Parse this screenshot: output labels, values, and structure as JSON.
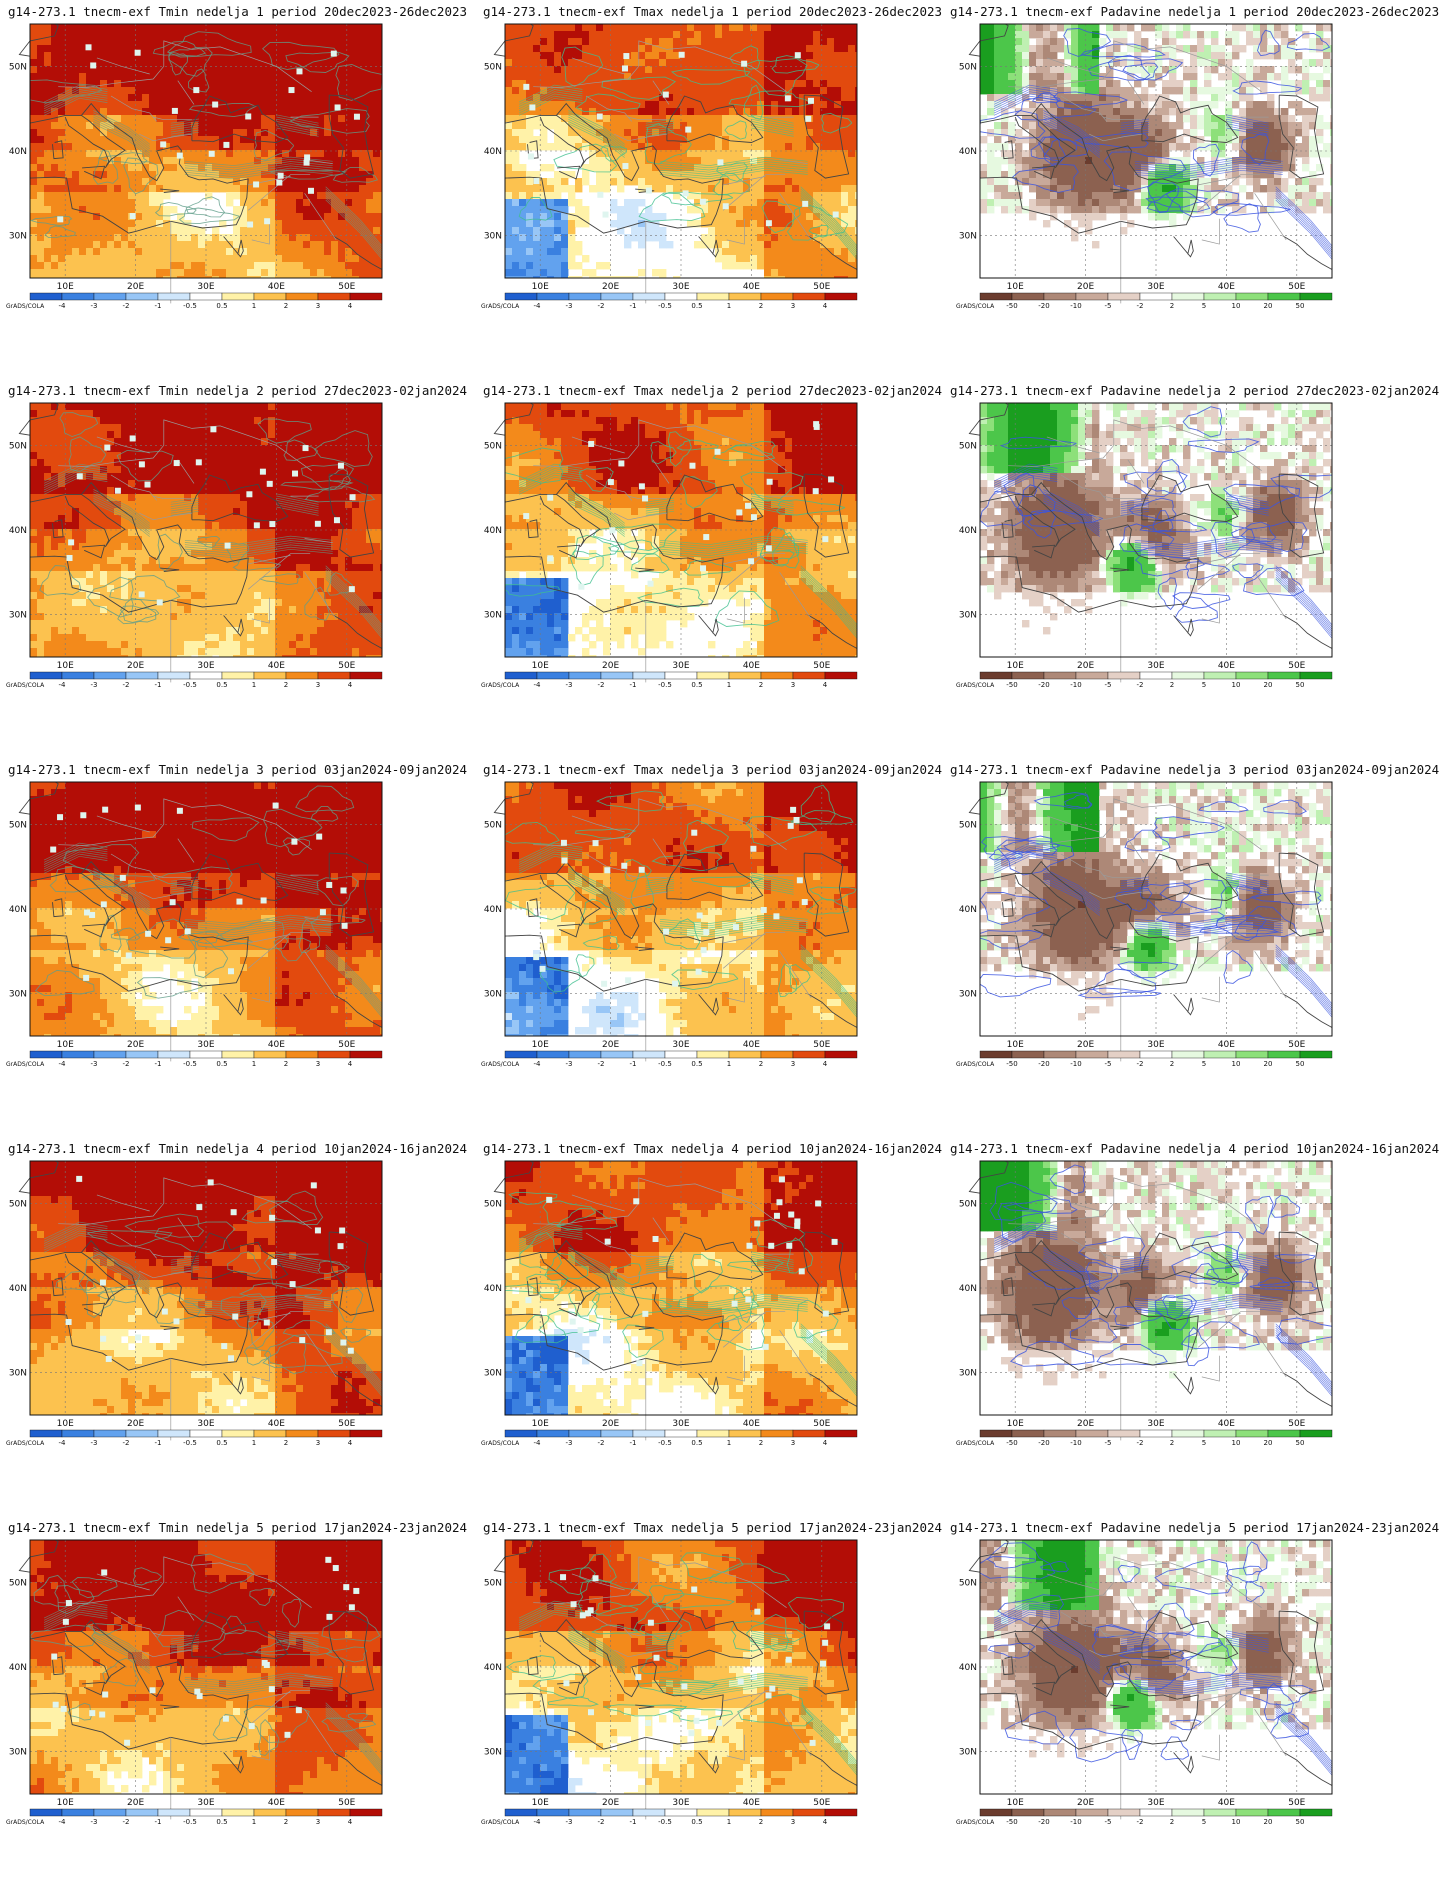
{
  "panels": [
    {
      "title": "g14-273.1 tnecm-exf Tmin nedelja 1 period 20dec2023-26dec2023",
      "var": "tmin",
      "seed": 11
    },
    {
      "title": "g14-273.1 tnecm-exf Tmax nedelja 1 period 20dec2023-26dec2023",
      "var": "tmax",
      "seed": 12
    },
    {
      "title": "g14-273.1 tnecm-exf Padavine nedelja 1 period 20dec2023-26dec2023",
      "var": "precip",
      "seed": 13
    },
    {
      "title": "g14-273.1 tnecm-exf Tmin nedelja 2 period 27dec2023-02jan2024",
      "var": "tmin",
      "seed": 21
    },
    {
      "title": "g14-273.1 tnecm-exf Tmax nedelja 2 period 27dec2023-02jan2024",
      "var": "tmax",
      "seed": 22
    },
    {
      "title": "g14-273.1 tnecm-exf Padavine nedelja 2 period 27dec2023-02jan2024",
      "var": "precip",
      "seed": 23
    },
    {
      "title": "g14-273.1 tnecm-exf Tmin nedelja 3 period 03jan2024-09jan2024",
      "var": "tmin",
      "seed": 31
    },
    {
      "title": "g14-273.1 tnecm-exf Tmax nedelja 3 period 03jan2024-09jan2024",
      "var": "tmax",
      "seed": 32
    },
    {
      "title": "g14-273.1 tnecm-exf Padavine nedelja 3 period 03jan2024-09jan2024",
      "var": "precip",
      "seed": 33
    },
    {
      "title": "g14-273.1 tnecm-exf Tmin nedelja 4 period 10jan2024-16jan2024",
      "var": "tmin",
      "seed": 41
    },
    {
      "title": "g14-273.1 tnecm-exf Tmax nedelja 4 period 10jan2024-16jan2024",
      "var": "tmax",
      "seed": 42
    },
    {
      "title": "g14-273.1 tnecm-exf Padavine nedelja 4 period 10jan2024-16jan2024",
      "var": "precip",
      "seed": 43
    },
    {
      "title": "g14-273.1 tnecm-exf Tmin nedelja 5 period 17jan2024-23jan2024",
      "var": "tmin",
      "seed": 51
    },
    {
      "title": "g14-273.1 tnecm-exf Tmax nedelja 5 period 17jan2024-23jan2024",
      "var": "tmax",
      "seed": 52
    },
    {
      "title": "g14-273.1 tnecm-exf Padavine nedelja 5 period 17jan2024-23jan2024",
      "var": "precip",
      "seed": 53
    }
  ],
  "axes": {
    "lon_labels": [
      "10E",
      "20E",
      "30E",
      "40E",
      "50E"
    ],
    "lat_labels": [
      "50N",
      "40N",
      "30N"
    ]
  },
  "colorbars": {
    "temp": {
      "labels": [
        "-4",
        "-3",
        "-2",
        "-1",
        "-0.5",
        "0.5",
        "1",
        "2",
        "3",
        "4"
      ],
      "colors": [
        "#1f5fcf",
        "#3a80e0",
        "#62a2ee",
        "#98c6f6",
        "#cfe6fb",
        "#ffffff",
        "#fff2a8",
        "#fcc24f",
        "#f38a1b",
        "#e24a0e",
        "#b30d06"
      ]
    },
    "precip": {
      "labels": [
        "-50",
        "-20",
        "-10",
        "-5",
        "-2",
        "2",
        "5",
        "10",
        "20",
        "50"
      ],
      "colors": [
        "#6b3c2e",
        "#8c6150",
        "#ad8877",
        "#c8a99a",
        "#e4d0c6",
        "#ffffff",
        "#e6f9e0",
        "#bff0b2",
        "#8de07a",
        "#4cc64a",
        "#1a9e1f"
      ]
    },
    "credit": "GrADS/COLA"
  },
  "legend_icons": [
    "colorbar-temperature-anomaly",
    "colorbar-precipitation-anomaly"
  ]
}
